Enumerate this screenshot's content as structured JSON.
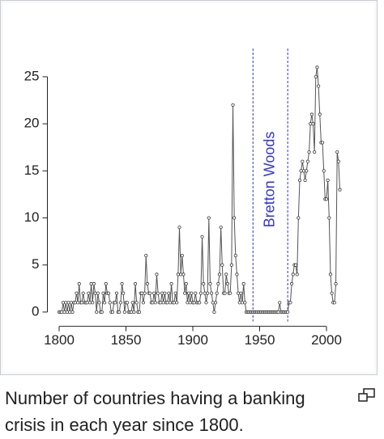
{
  "chart_data": {
    "type": "line",
    "x": [
      1800,
      1801,
      1802,
      1803,
      1804,
      1805,
      1806,
      1807,
      1808,
      1809,
      1810,
      1811,
      1812,
      1813,
      1814,
      1815,
      1816,
      1817,
      1818,
      1819,
      1820,
      1821,
      1822,
      1823,
      1824,
      1825,
      1826,
      1827,
      1828,
      1829,
      1830,
      1831,
      1832,
      1833,
      1834,
      1835,
      1836,
      1837,
      1838,
      1839,
      1840,
      1841,
      1842,
      1843,
      1844,
      1845,
      1846,
      1847,
      1848,
      1849,
      1850,
      1851,
      1852,
      1853,
      1854,
      1855,
      1856,
      1857,
      1858,
      1859,
      1860,
      1861,
      1862,
      1863,
      1864,
      1865,
      1866,
      1867,
      1868,
      1869,
      1870,
      1871,
      1872,
      1873,
      1874,
      1875,
      1876,
      1877,
      1878,
      1879,
      1880,
      1881,
      1882,
      1883,
      1884,
      1885,
      1886,
      1887,
      1888,
      1889,
      1890,
      1891,
      1892,
      1893,
      1894,
      1895,
      1896,
      1897,
      1898,
      1899,
      1900,
      1901,
      1902,
      1903,
      1904,
      1905,
      1906,
      1907,
      1908,
      1909,
      1910,
      1911,
      1912,
      1913,
      1914,
      1915,
      1916,
      1917,
      1918,
      1919,
      1920,
      1921,
      1922,
      1923,
      1924,
      1925,
      1926,
      1927,
      1928,
      1929,
      1930,
      1931,
      1932,
      1933,
      1934,
      1935,
      1936,
      1937,
      1938,
      1939,
      1940,
      1941,
      1942,
      1943,
      1944,
      1945,
      1946,
      1947,
      1948,
      1949,
      1950,
      1951,
      1952,
      1953,
      1954,
      1955,
      1956,
      1957,
      1958,
      1959,
      1960,
      1961,
      1962,
      1963,
      1964,
      1965,
      1966,
      1967,
      1968,
      1969,
      1970,
      1971,
      1972,
      1973,
      1974,
      1975,
      1976,
      1977,
      1978,
      1979,
      1980,
      1981,
      1982,
      1983,
      1984,
      1985,
      1986,
      1987,
      1988,
      1989,
      1990,
      1991,
      1992,
      1993,
      1994,
      1995,
      1996,
      1997,
      1998,
      1999,
      2000,
      2001,
      2002,
      2003,
      2004,
      2005,
      2006,
      2007,
      2008,
      2009,
      2010
    ],
    "y": [
      0,
      0,
      0,
      1,
      0,
      1,
      0,
      1,
      0,
      1,
      0,
      1,
      1,
      2,
      1,
      3,
      1,
      1,
      2,
      1,
      1,
      1,
      2,
      1,
      3,
      1,
      3,
      2,
      0,
      2,
      1,
      0,
      0,
      2,
      1,
      3,
      2,
      2,
      1,
      0,
      0,
      1,
      1,
      2,
      0,
      0,
      1,
      3,
      2,
      0,
      1,
      1,
      0,
      0,
      0,
      1,
      0,
      3,
      1,
      0,
      0,
      2,
      2,
      1,
      2,
      6,
      3,
      2,
      2,
      1,
      1,
      2,
      1,
      4,
      2,
      1,
      1,
      2,
      1,
      2,
      1,
      1,
      2,
      1,
      3,
      1,
      1,
      2,
      1,
      4,
      9,
      4,
      6,
      4,
      2,
      3,
      1,
      2,
      1,
      2,
      1,
      1,
      2,
      1,
      1,
      1,
      2,
      8,
      3,
      2,
      1,
      2,
      10,
      3,
      2,
      1,
      0,
      1,
      2,
      3,
      4,
      9,
      5,
      2,
      2,
      4,
      3,
      2,
      2,
      5,
      22,
      10,
      6,
      4,
      2,
      1,
      2,
      1,
      3,
      1,
      0,
      0,
      0,
      0,
      0,
      0,
      0,
      0,
      0,
      0,
      0,
      0,
      0,
      0,
      0,
      0,
      0,
      0,
      0,
      0,
      0,
      0,
      0,
      0,
      0,
      1,
      0,
      0,
      0,
      0,
      0,
      0,
      1,
      1,
      3,
      4,
      5,
      5,
      4,
      10,
      14,
      15,
      16,
      15,
      14,
      15,
      16,
      17,
      20,
      21,
      20,
      17,
      25,
      26,
      24,
      21,
      18,
      18,
      15,
      12,
      12,
      14,
      10,
      4,
      2,
      1,
      1,
      3,
      17,
      16,
      13
    ],
    "color": "#555555",
    "xlim": [
      1790,
      2020
    ],
    "xticks": [
      1800,
      1850,
      1900,
      1950,
      2000
    ],
    "ylim": [
      -1,
      28
    ],
    "yticks": [
      0,
      5,
      10,
      15,
      20,
      25
    ],
    "annotation": {
      "text": "Bretton Woods",
      "x": [
        1945,
        1971
      ],
      "color": "#3333dd"
    },
    "caption": "Number of countries having a banking crisis in each year since 1800."
  }
}
